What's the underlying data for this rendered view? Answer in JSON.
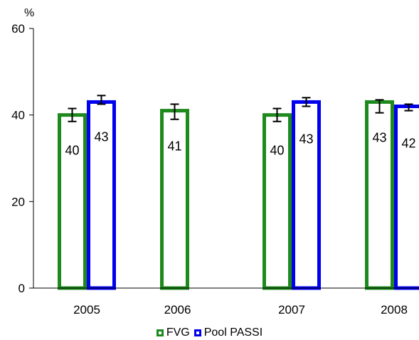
{
  "chart_data": {
    "type": "bar",
    "unit_label": "%",
    "categories": [
      "2005",
      "2006",
      "2007",
      "2008"
    ],
    "series": [
      {
        "name": "FVG",
        "color": "#1e8a1e",
        "values": [
          40,
          41,
          40,
          43
        ],
        "labels": [
          "40",
          "41",
          "40",
          "43"
        ],
        "error": [
          [
            38.5,
            41.5
          ],
          [
            39,
            42.5
          ],
          [
            38.5,
            41.5
          ],
          [
            40.5,
            43.5
          ]
        ]
      },
      {
        "name": "Pool PASSI",
        "color": "#0000ee",
        "values": [
          43,
          null,
          43,
          42
        ],
        "labels": [
          "43",
          "",
          "43",
          "42"
        ],
        "error": [
          [
            42.5,
            44.5
          ],
          null,
          [
            42,
            44
          ],
          [
            41,
            42.5
          ]
        ]
      }
    ],
    "ylim": [
      0,
      60
    ],
    "yticks": [
      0,
      20,
      40,
      60
    ],
    "legend_position": "bottom"
  }
}
